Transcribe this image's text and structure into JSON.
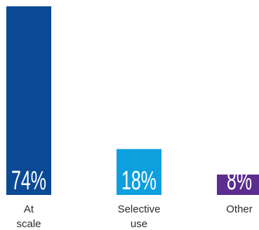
{
  "chart_data": {
    "type": "bar",
    "categories": [
      "At scale",
      "Selective use",
      "Other"
    ],
    "category_lines": [
      [
        "At",
        "scale"
      ],
      [
        "Selective",
        "use"
      ],
      [
        "Other"
      ]
    ],
    "values": [
      74,
      18,
      8
    ],
    "value_labels": [
      "74%",
      "18%",
      "8%"
    ],
    "ylim": [
      0,
      74
    ],
    "grid": false,
    "colors": [
      "#0a4a95",
      "#0d9fde",
      "#5b2d8e"
    ],
    "value_label_color": "#ffffff",
    "title": "",
    "xlabel": "",
    "ylabel": ""
  }
}
